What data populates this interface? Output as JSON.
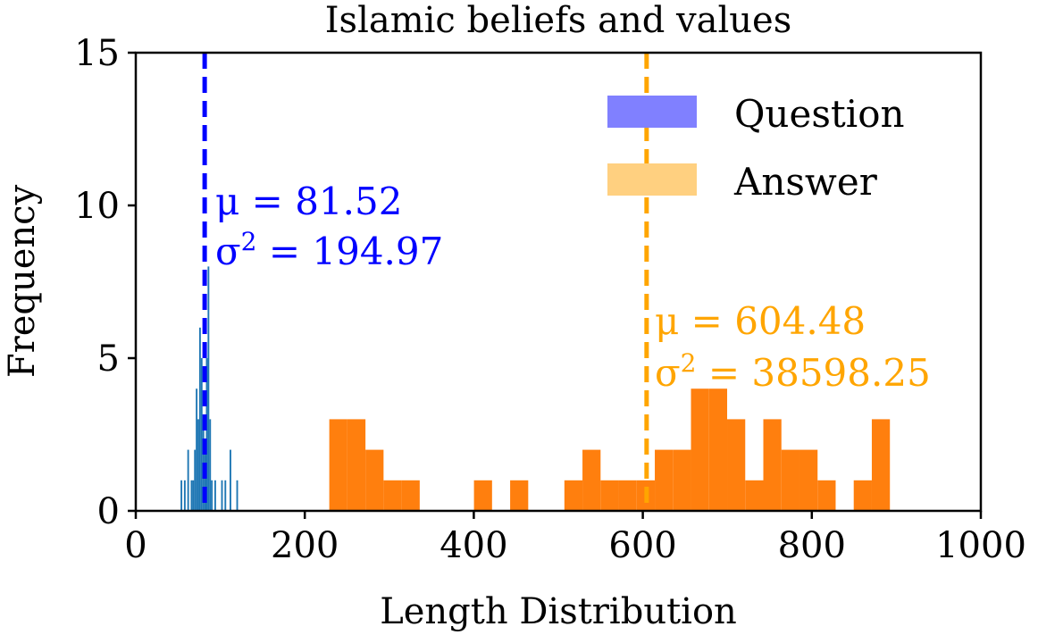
{
  "chart_data": {
    "type": "histogram",
    "title": "Islamic beliefs and values",
    "xlabel": "Length Distribution",
    "ylabel": "Frequency",
    "xlim": [
      0,
      1000
    ],
    "ylim": [
      0,
      15
    ],
    "xticks": [
      0,
      200,
      400,
      600,
      800,
      1000
    ],
    "yticks": [
      0,
      5,
      10,
      15
    ],
    "grid": false,
    "legend_position": "top-right",
    "legend": [
      {
        "label": "Question",
        "color": "#8080ff"
      },
      {
        "label": "Answer",
        "color": "#ffd080"
      }
    ],
    "series": [
      {
        "name": "Question",
        "color": "#1f77b4",
        "bin_width": 2,
        "bins": [
          {
            "x": 53,
            "count": 1
          },
          {
            "x": 57,
            "count": 1
          },
          {
            "x": 61,
            "count": 2
          },
          {
            "x": 65,
            "count": 1
          },
          {
            "x": 67,
            "count": 1
          },
          {
            "x": 69,
            "count": 2
          },
          {
            "x": 71,
            "count": 4
          },
          {
            "x": 73,
            "count": 3
          },
          {
            "x": 75,
            "count": 6
          },
          {
            "x": 77,
            "count": 5
          },
          {
            "x": 79,
            "count": 3
          },
          {
            "x": 81,
            "count": 2
          },
          {
            "x": 83,
            "count": 5
          },
          {
            "x": 85,
            "count": 8
          },
          {
            "x": 87,
            "count": 3
          },
          {
            "x": 89,
            "count": 1
          },
          {
            "x": 93,
            "count": 1
          },
          {
            "x": 101,
            "count": 1
          },
          {
            "x": 105,
            "count": 1
          },
          {
            "x": 111,
            "count": 2
          },
          {
            "x": 119,
            "count": 1
          }
        ]
      },
      {
        "name": "Answer",
        "color": "#ff7f0e",
        "bin_width": 21.4,
        "bins": [
          {
            "x": 229,
            "count": 3
          },
          {
            "x": 250.4,
            "count": 3
          },
          {
            "x": 271.8,
            "count": 2
          },
          {
            "x": 293.2,
            "count": 1
          },
          {
            "x": 314.6,
            "count": 1
          },
          {
            "x": 400.2,
            "count": 1
          },
          {
            "x": 443,
            "count": 1
          },
          {
            "x": 507.2,
            "count": 1
          },
          {
            "x": 528.6,
            "count": 2
          },
          {
            "x": 550,
            "count": 1
          },
          {
            "x": 571.4,
            "count": 1
          },
          {
            "x": 592.8,
            "count": 1
          },
          {
            "x": 614.2,
            "count": 2
          },
          {
            "x": 635.6,
            "count": 2
          },
          {
            "x": 657,
            "count": 4
          },
          {
            "x": 678.4,
            "count": 4
          },
          {
            "x": 699.8,
            "count": 3
          },
          {
            "x": 721.2,
            "count": 1
          },
          {
            "x": 742.6,
            "count": 3
          },
          {
            "x": 764,
            "count": 2
          },
          {
            "x": 785.4,
            "count": 2
          },
          {
            "x": 806.8,
            "count": 1
          },
          {
            "x": 849.6,
            "count": 1
          },
          {
            "x": 871,
            "count": 3
          }
        ]
      }
    ],
    "mean_lines": [
      {
        "series": "Question",
        "x": 81.52,
        "color": "#0000ff",
        "mu_label": "μ = 81.52",
        "sigma_prefix": "σ",
        "sigma_sup": "2",
        "sigma_value": " = 194.97"
      },
      {
        "series": "Answer",
        "x": 604.48,
        "color": "#ffa500",
        "mu_label": "μ = 604.48",
        "sigma_prefix": "σ",
        "sigma_sup": "2",
        "sigma_value": " = 38598.25"
      }
    ]
  }
}
